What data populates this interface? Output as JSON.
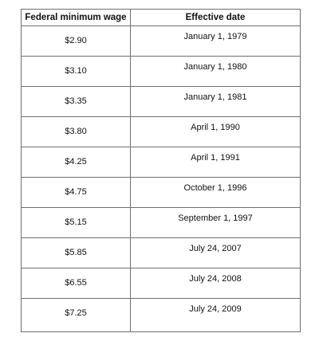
{
  "table": {
    "headers": {
      "wage": "Federal minimum wage",
      "date": "Effective date"
    },
    "rows": [
      {
        "wage": "$2.90",
        "date": "January 1, 1979"
      },
      {
        "wage": "$3.10",
        "date": "January 1, 1980"
      },
      {
        "wage": "$3.35",
        "date": "January 1, 1981"
      },
      {
        "wage": "$3.80",
        "date": "April 1, 1990"
      },
      {
        "wage": "$4.25",
        "date": "April 1, 1991"
      },
      {
        "wage": "$4.75",
        "date": "October 1, 1996"
      },
      {
        "wage": "$5.15",
        "date": "September 1, 1997"
      },
      {
        "wage": "$5.85",
        "date": "July 24, 2007"
      },
      {
        "wage": "$6.55",
        "date": "July 24, 2008"
      },
      {
        "wage": "$7.25",
        "date": "July 24, 2009"
      }
    ]
  },
  "colors": {
    "border": "#6f6f6f",
    "text": "#111111",
    "background": "#ffffff"
  }
}
